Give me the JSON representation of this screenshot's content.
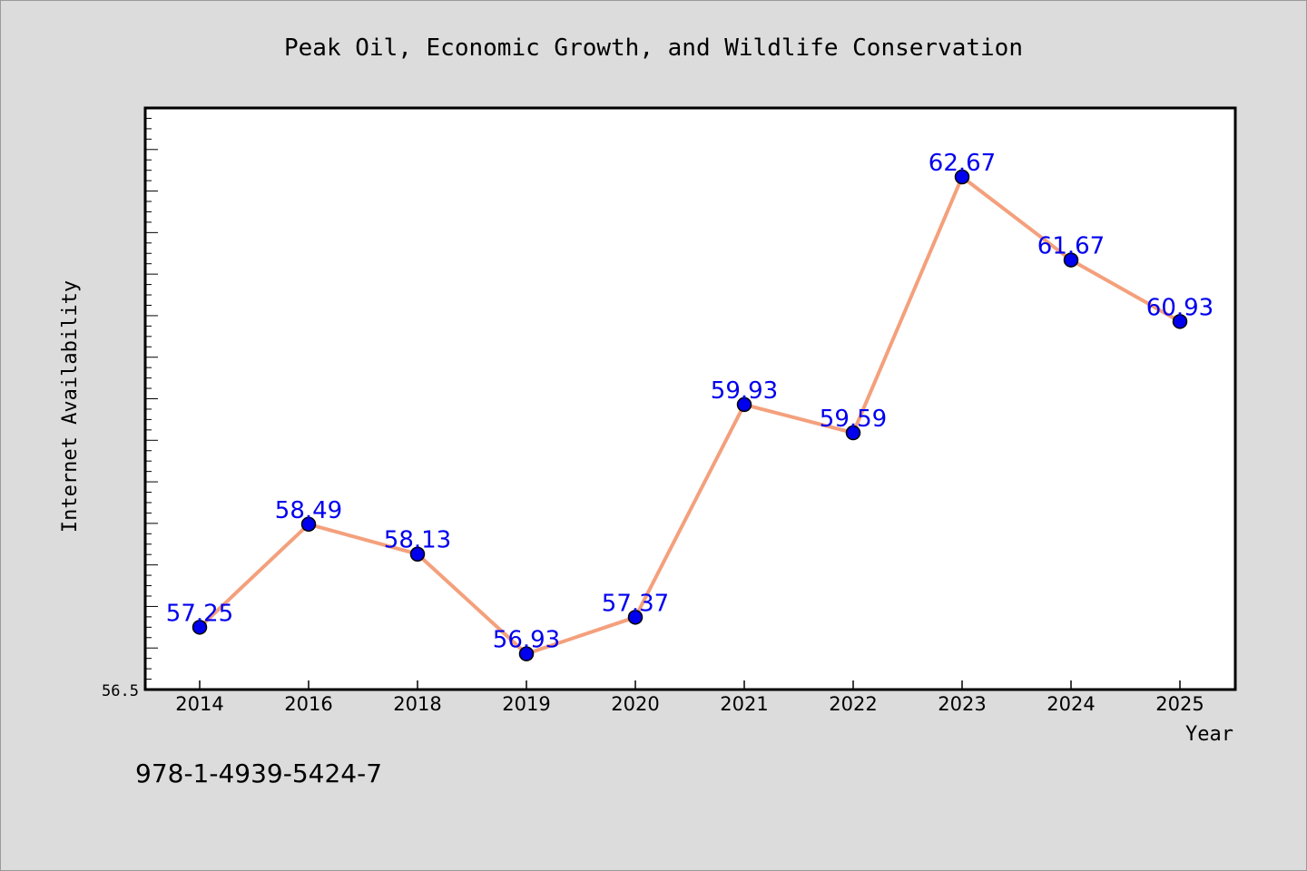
{
  "chart_data": {
    "type": "line",
    "title": "Peak Oil, Economic Growth, and Wildlife Conservation",
    "xlabel": "Year",
    "ylabel": "Internet Availability",
    "categories": [
      "2014",
      "2016",
      "2018",
      "2019",
      "2020",
      "2021",
      "2022",
      "2023",
      "2024",
      "2025"
    ],
    "values": [
      57.25,
      58.49,
      58.13,
      56.93,
      57.37,
      59.93,
      59.59,
      62.67,
      61.67,
      60.93
    ],
    "value_labels": [
      "57.25",
      "58.49",
      "58.13",
      "56.93",
      "57.37",
      "59.93",
      "59.59",
      "62.67",
      "61.67",
      "60.93"
    ],
    "y_min_label": "56.5",
    "ylim": [
      56.5,
      63.5
    ],
    "grid": false,
    "legend": "none",
    "colors": {
      "line": "#f4a07c",
      "marker": "#0000ee",
      "data_label": "#0000ee",
      "plot_background": "#ffffff",
      "page_background": "#dcdcdc"
    }
  },
  "footer": {
    "isbn": "978-1-4939-5424-7"
  }
}
